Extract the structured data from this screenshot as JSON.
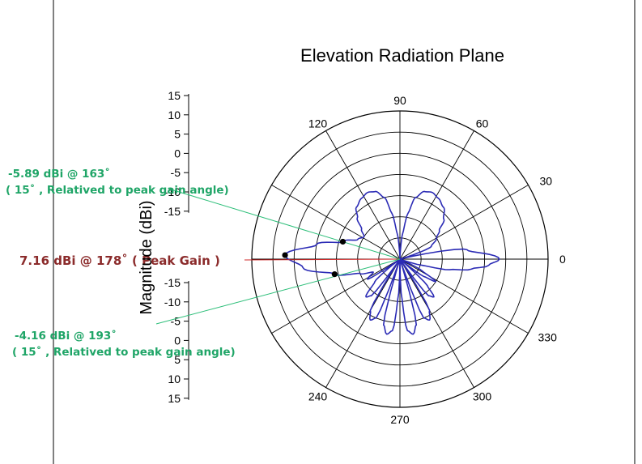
{
  "chart_data": {
    "type": "polar",
    "title": "Elevation Radiation Plane",
    "ylabel": "Magnitude (dBi)",
    "angle_unit": "degrees",
    "angle_ticks": [
      "90",
      "60",
      "30",
      "0",
      "330",
      "300",
      "270",
      "240",
      "120"
    ],
    "radial_tick_labels_upper": [
      "15",
      "10",
      "5",
      "0",
      "-5",
      "-10",
      "-15"
    ],
    "radial_tick_labels_lower": [
      "-15",
      "-10",
      "-5",
      "0",
      "5",
      "10",
      "15"
    ],
    "radial_range_dbi": [
      -20,
      15
    ],
    "grid": true,
    "series": [
      {
        "color": "#2b2bb5",
        "angles": [
          0,
          8,
          15,
          22,
          30,
          36,
          42,
          50,
          58,
          64,
          70,
          76,
          80,
          84,
          88,
          90,
          92,
          96,
          100,
          104,
          110,
          116,
          122,
          130,
          136,
          142,
          148,
          155,
          163,
          170,
          178,
          185,
          193,
          200,
          206,
          212,
          216,
          222,
          228,
          232,
          236,
          240,
          244,
          248,
          252,
          256,
          260,
          264,
          268,
          270,
          272,
          276,
          280,
          284,
          288,
          292,
          296,
          300,
          304,
          308,
          312,
          316,
          320,
          324,
          328,
          332,
          336,
          340,
          344,
          348,
          352,
          356,
          360
        ],
        "gain_dbi": [
          3.5,
          -4,
          -20,
          -12,
          -10,
          -8.5,
          -6,
          -4,
          -3,
          -2.5,
          -3,
          -5,
          -9,
          -14,
          -19,
          -20,
          -19,
          -14,
          -9,
          -5,
          -3,
          -2.5,
          -3,
          -4,
          -6,
          -8.5,
          -10,
          -9,
          -5.89,
          0,
          7.16,
          3,
          -4.16,
          -10,
          -13,
          -11,
          -20,
          -12,
          -8,
          -9,
          -20,
          -6,
          -4,
          -5,
          -20,
          -4,
          -2,
          -3,
          -12,
          -20,
          -12,
          -3,
          -2,
          -4,
          -20,
          -5,
          -4,
          -6,
          -20,
          -9,
          -8,
          -11,
          -20,
          -13,
          -10,
          -14,
          -18,
          -20,
          -15,
          -8,
          -3,
          1,
          3.5
        ]
      }
    ],
    "markers": [
      {
        "angle": 163,
        "gain_dbi": -5.89
      },
      {
        "angle": 178,
        "gain_dbi": 7.16
      },
      {
        "angle": 193,
        "gain_dbi": -4.16
      }
    ],
    "annotations": [
      {
        "line1": "-5.89 dBi @ 163˚",
        "line2": "( 15˚ , Relatived to peak gain angle)",
        "color": "#1fa567"
      },
      {
        "line1": "7.16 dBi @ 178˚ ( Peak Gain )",
        "color": "#8b2b2b"
      },
      {
        "line1": "-4.16 dBi @ 193˚",
        "line2": "( 15˚ , Relatived to peak gain angle)",
        "color": "#1fa567"
      }
    ]
  }
}
